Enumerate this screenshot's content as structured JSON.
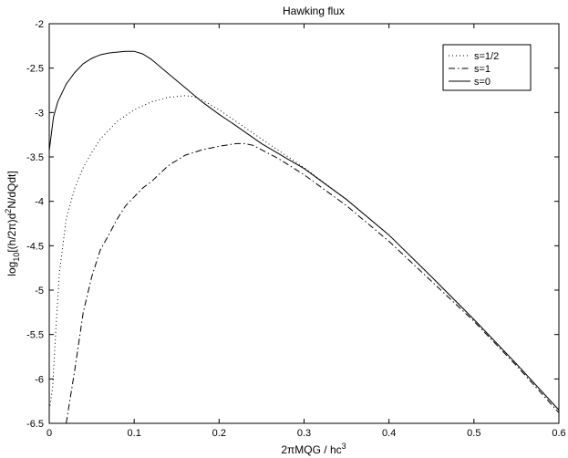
{
  "chart_data": {
    "type": "line",
    "title": "Hawking flux",
    "xlabel": {
      "prefix": "2πMQG / hc",
      "sup": "3"
    },
    "ylabel": {
      "p1": "log",
      "sub": "10",
      "p2": "[(h/2π)d",
      "sup": "2",
      "p3": "N/dQdt]"
    },
    "xlim": [
      0,
      0.6
    ],
    "ylim": [
      -6.5,
      -2
    ],
    "xticks": [
      0,
      0.1,
      0.2,
      0.3,
      0.4,
      0.5,
      0.6
    ],
    "xtick_labels": [
      "0",
      "0.1",
      "0.2",
      "0.3",
      "0.4",
      "0.5",
      "0.6"
    ],
    "yticks": [
      -6.5,
      -6,
      -5.5,
      -5,
      -4.5,
      -4,
      -3.5,
      -3,
      -2.5,
      -2
    ],
    "ytick_labels": [
      "-6.5",
      "-6",
      "-5.5",
      "-5",
      "-4.5",
      "-4",
      "-3.5",
      "-3",
      "-2.5",
      "-2"
    ],
    "grid": false,
    "legend_position": "top-right",
    "series": [
      {
        "name": "s=1/2",
        "style": "dotted",
        "x": [
          0.001,
          0.004,
          0.008,
          0.012,
          0.02,
          0.03,
          0.04,
          0.05,
          0.06,
          0.08,
          0.1,
          0.12,
          0.14,
          0.16,
          0.17,
          0.18,
          0.2,
          0.22,
          0.25,
          0.3,
          0.35,
          0.4,
          0.45,
          0.5,
          0.55,
          0.6
        ],
        "y": [
          -6.3,
          -6.1,
          -5.4,
          -4.8,
          -4.2,
          -3.85,
          -3.62,
          -3.45,
          -3.3,
          -3.1,
          -2.97,
          -2.88,
          -2.83,
          -2.81,
          -2.82,
          -2.86,
          -2.97,
          -3.1,
          -3.3,
          -3.62,
          -3.98,
          -4.38,
          -4.85,
          -5.33,
          -5.83,
          -6.35
        ]
      },
      {
        "name": "s=1",
        "style": "dashdot",
        "x": [
          0.02,
          0.03,
          0.04,
          0.05,
          0.06,
          0.07,
          0.08,
          0.09,
          0.1,
          0.11,
          0.12,
          0.14,
          0.16,
          0.18,
          0.2,
          0.22,
          0.23,
          0.24,
          0.25,
          0.27,
          0.3,
          0.35,
          0.4,
          0.45,
          0.5,
          0.55,
          0.6
        ],
        "y": [
          -6.5,
          -5.9,
          -5.25,
          -4.85,
          -4.55,
          -4.38,
          -4.2,
          -4.05,
          -3.95,
          -3.85,
          -3.78,
          -3.6,
          -3.48,
          -3.42,
          -3.38,
          -3.35,
          -3.35,
          -3.37,
          -3.42,
          -3.52,
          -3.7,
          -4.05,
          -4.45,
          -4.9,
          -5.35,
          -5.85,
          -6.38
        ]
      },
      {
        "name": "s=0",
        "style": "solid",
        "x": [
          0.0,
          0.005,
          0.01,
          0.02,
          0.03,
          0.04,
          0.05,
          0.06,
          0.07,
          0.08,
          0.09,
          0.1,
          0.11,
          0.12,
          0.14,
          0.16,
          0.18,
          0.2,
          0.22,
          0.25,
          0.28,
          0.3,
          0.35,
          0.4,
          0.45,
          0.5,
          0.55,
          0.6
        ],
        "y": [
          -3.43,
          -3.05,
          -2.88,
          -2.68,
          -2.55,
          -2.45,
          -2.39,
          -2.35,
          -2.33,
          -2.32,
          -2.31,
          -2.31,
          -2.34,
          -2.4,
          -2.56,
          -2.72,
          -2.88,
          -3.02,
          -3.15,
          -3.35,
          -3.52,
          -3.63,
          -3.98,
          -4.38,
          -4.85,
          -5.33,
          -5.83,
          -6.35
        ]
      }
    ]
  }
}
